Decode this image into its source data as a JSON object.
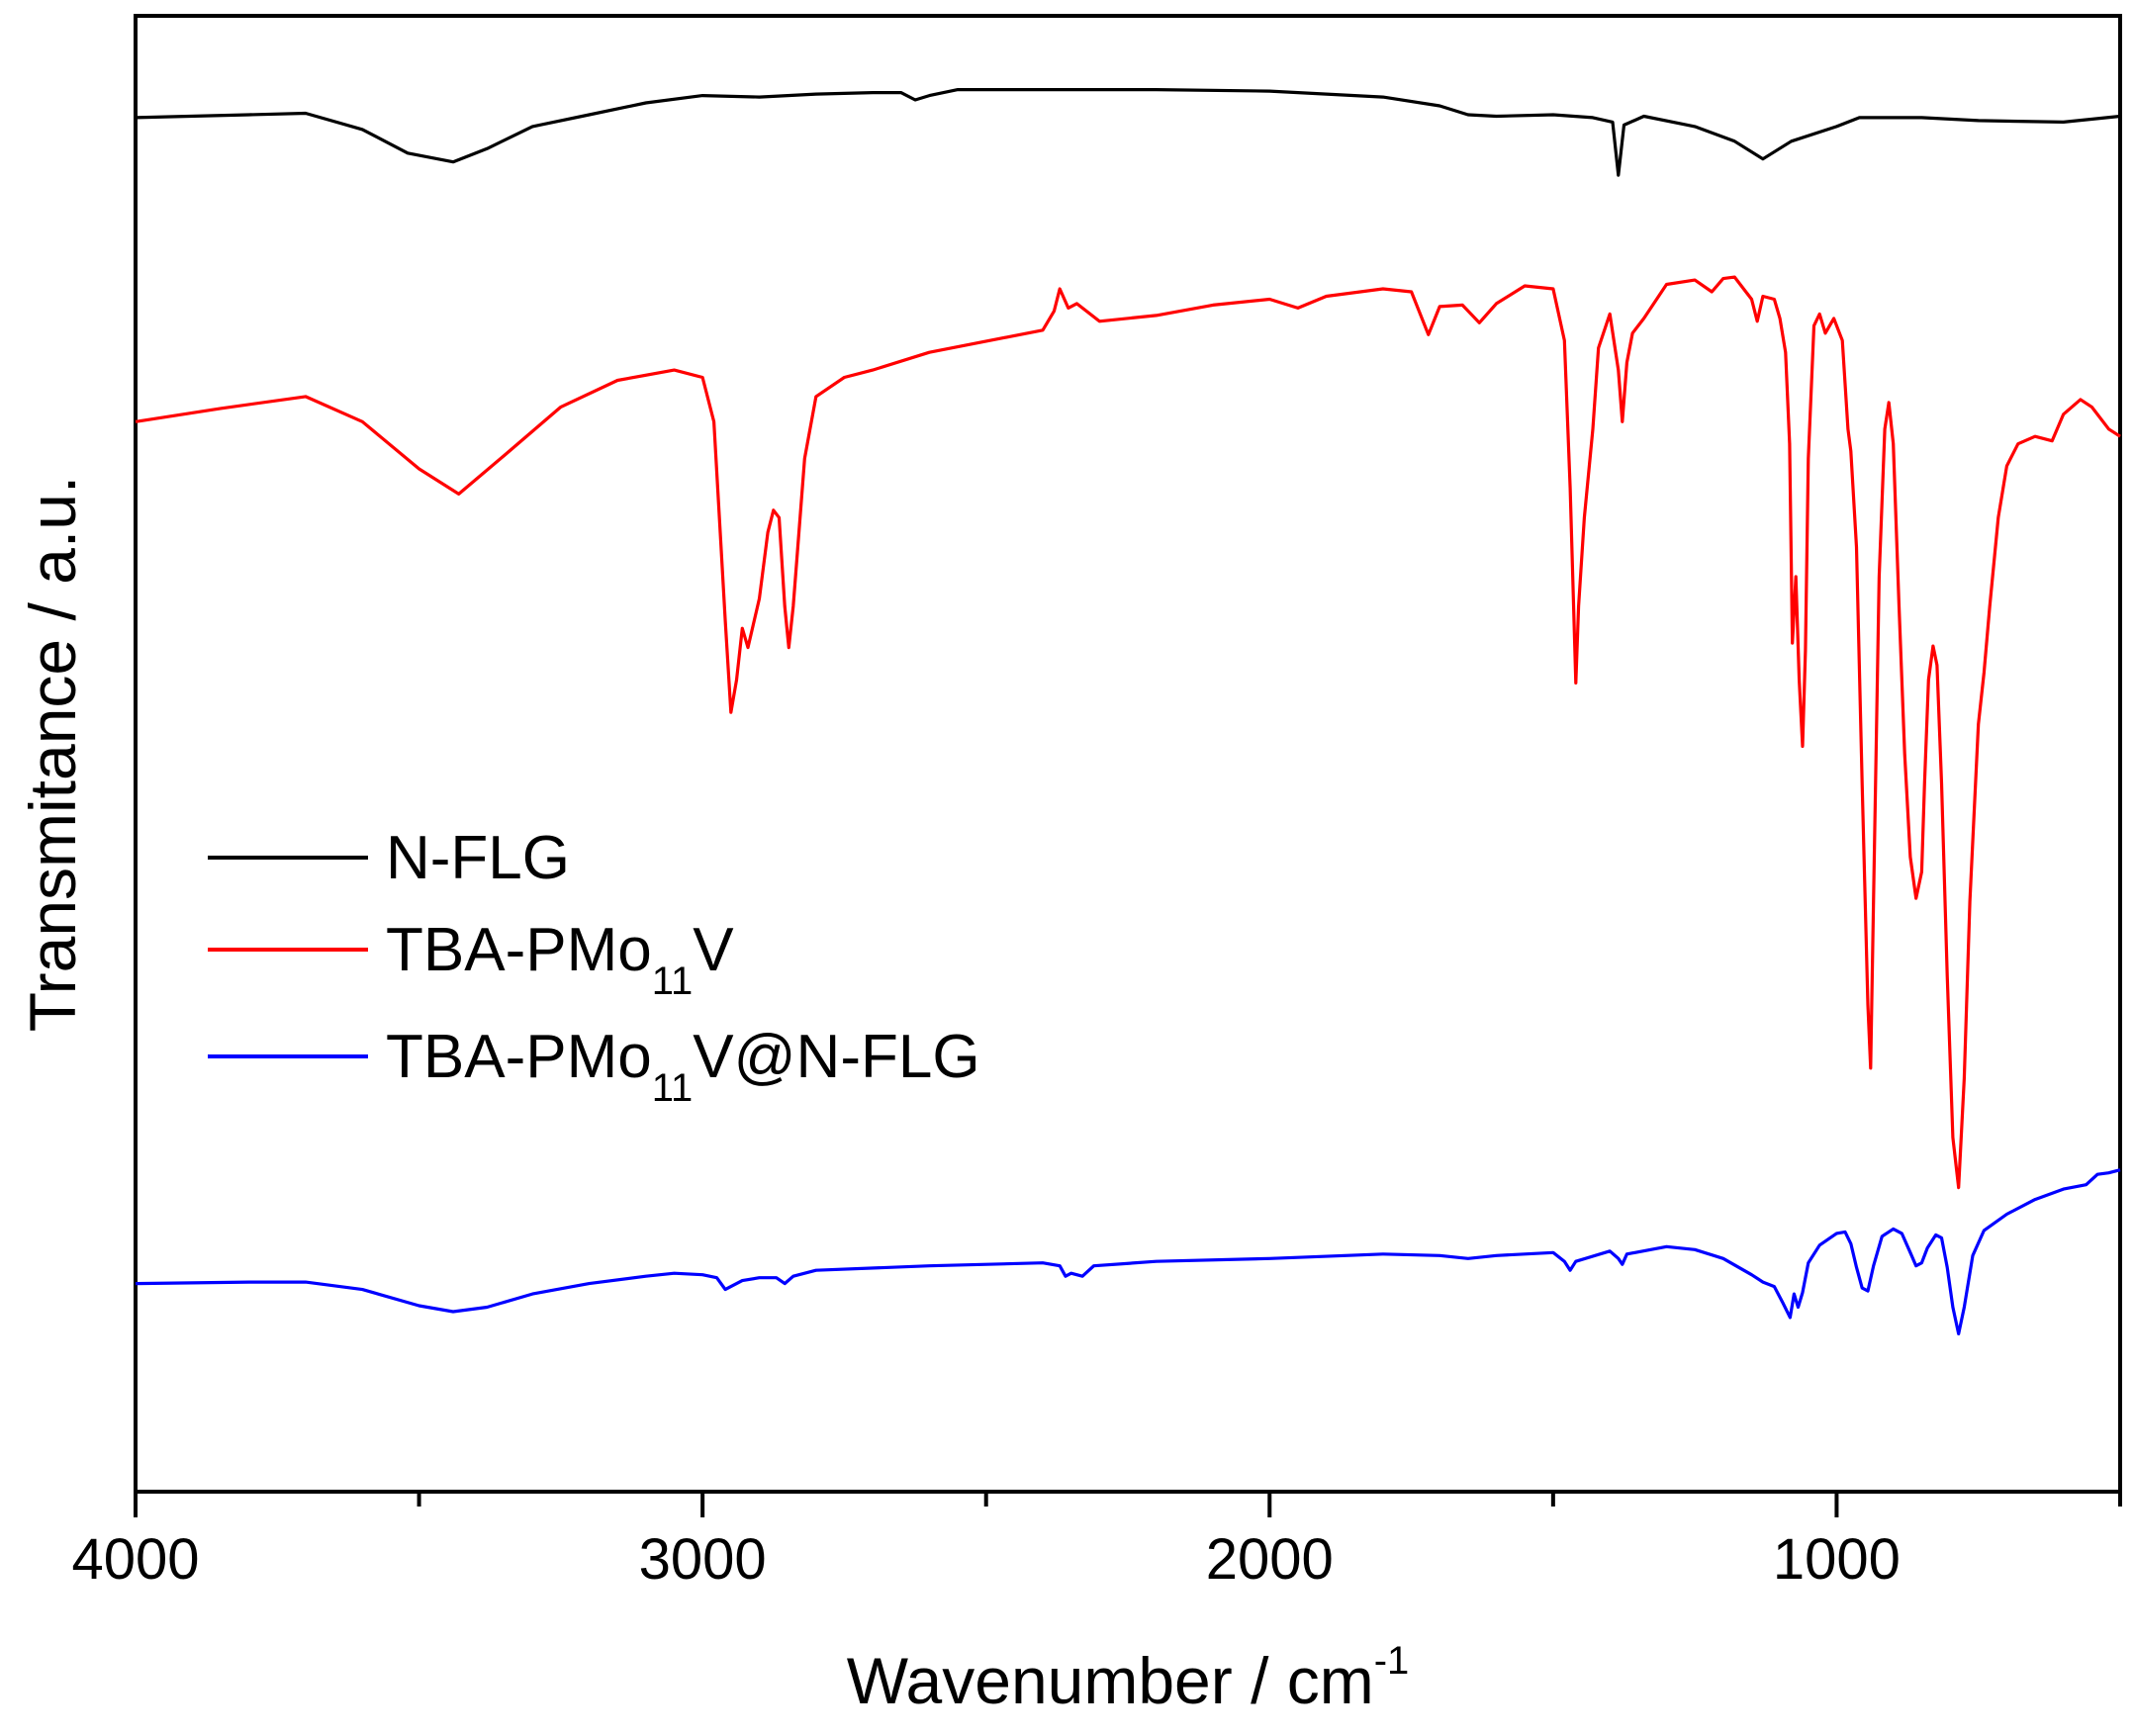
{
  "chart_data": {
    "type": "line",
    "title": "",
    "xlabel": "Wavenumber / cm",
    "xlabel_superscript": "-1",
    "ylabel": "Transmitance / a.u.",
    "xlim": [
      4000,
      500
    ],
    "ylim": [
      0,
      100
    ],
    "x_ticks": [
      4000,
      3000,
      2000,
      1000
    ],
    "x_minor_ticks": [
      3500,
      2500,
      1500,
      500
    ],
    "x_reversed": true,
    "y_tick_labels": false,
    "grid": false,
    "legend_position": "middle-left",
    "legend": [
      {
        "name": "N-FLG",
        "parts": [
          "N-FLG"
        ],
        "color": "#000000"
      },
      {
        "name": "TBA-PMo11V",
        "parts": [
          "TBA-PMo",
          "11",
          "V"
        ],
        "color": "#ff0000"
      },
      {
        "name": "TBA-PMo11V@N-FLG",
        "parts": [
          "TBA-PMo",
          "11",
          "V@N-FLG"
        ],
        "color": "#0000ff"
      }
    ],
    "series": [
      {
        "name": "N-FLG",
        "color": "#000000",
        "points": [
          [
            4000,
            93.1
          ],
          [
            3800,
            93.3
          ],
          [
            3700,
            93.4
          ],
          [
            3600,
            92.3
          ],
          [
            3520,
            90.7
          ],
          [
            3440,
            90.1
          ],
          [
            3380,
            91
          ],
          [
            3300,
            92.5
          ],
          [
            3200,
            93.3
          ],
          [
            3100,
            94.1
          ],
          [
            3000,
            94.6
          ],
          [
            2900,
            94.5
          ],
          [
            2800,
            94.7
          ],
          [
            2700,
            94.8
          ],
          [
            2650,
            94.8
          ],
          [
            2625,
            94.3
          ],
          [
            2600,
            94.6
          ],
          [
            2550,
            95.0
          ],
          [
            2400,
            95.0
          ],
          [
            2200,
            95.0
          ],
          [
            2000,
            94.9
          ],
          [
            1800,
            94.5
          ],
          [
            1700,
            93.9
          ],
          [
            1650,
            93.3
          ],
          [
            1600,
            93.2
          ],
          [
            1500,
            93.3
          ],
          [
            1430,
            93.1
          ],
          [
            1395,
            92.8
          ],
          [
            1385,
            89.2
          ],
          [
            1375,
            92.6
          ],
          [
            1340,
            93.2
          ],
          [
            1250,
            92.5
          ],
          [
            1180,
            91.5
          ],
          [
            1130,
            90.3
          ],
          [
            1080,
            91.5
          ],
          [
            1000,
            92.5
          ],
          [
            960,
            93.1
          ],
          [
            850,
            93.1
          ],
          [
            750,
            92.9
          ],
          [
            600,
            92.8
          ],
          [
            500,
            93.2
          ]
        ]
      },
      {
        "name": "TBA-PMo11V",
        "color": "#ff0000",
        "points": [
          [
            4000,
            72.5
          ],
          [
            3850,
            73.4
          ],
          [
            3700,
            74.2
          ],
          [
            3600,
            72.5
          ],
          [
            3500,
            69.3
          ],
          [
            3430,
            67.6
          ],
          [
            3350,
            70.2
          ],
          [
            3250,
            73.5
          ],
          [
            3150,
            75.3
          ],
          [
            3050,
            76.0
          ],
          [
            3000,
            75.5
          ],
          [
            2980,
            72.5
          ],
          [
            2960,
            59
          ],
          [
            2950,
            52.8
          ],
          [
            2940,
            55
          ],
          [
            2930,
            58.5
          ],
          [
            2920,
            57.2
          ],
          [
            2900,
            60.5
          ],
          [
            2885,
            65
          ],
          [
            2875,
            66.5
          ],
          [
            2865,
            66
          ],
          [
            2855,
            60
          ],
          [
            2848,
            57.2
          ],
          [
            2840,
            60
          ],
          [
            2820,
            70
          ],
          [
            2800,
            74.2
          ],
          [
            2750,
            75.5
          ],
          [
            2700,
            76.0
          ],
          [
            2600,
            77.2
          ],
          [
            2400,
            78.7
          ],
          [
            2380,
            80.0
          ],
          [
            2370,
            81.5
          ],
          [
            2355,
            80.2
          ],
          [
            2340,
            80.5
          ],
          [
            2300,
            79.3
          ],
          [
            2200,
            79.7
          ],
          [
            2100,
            80.4
          ],
          [
            2000,
            80.8
          ],
          [
            1950,
            80.2
          ],
          [
            1900,
            81.0
          ],
          [
            1800,
            81.5
          ],
          [
            1750,
            81.3
          ],
          [
            1720,
            78.4
          ],
          [
            1700,
            80.3
          ],
          [
            1660,
            80.4
          ],
          [
            1630,
            79.2
          ],
          [
            1600,
            80.5
          ],
          [
            1550,
            81.7
          ],
          [
            1500,
            81.5
          ],
          [
            1480,
            78
          ],
          [
            1470,
            68
          ],
          [
            1460,
            54.8
          ],
          [
            1455,
            60
          ],
          [
            1445,
            66
          ],
          [
            1430,
            72
          ],
          [
            1420,
            77.5
          ],
          [
            1400,
            79.8
          ],
          [
            1385,
            76
          ],
          [
            1378,
            72.5
          ],
          [
            1370,
            76.5
          ],
          [
            1360,
            78.5
          ],
          [
            1340,
            79.5
          ],
          [
            1300,
            81.8
          ],
          [
            1250,
            82.1
          ],
          [
            1220,
            81.3
          ],
          [
            1200,
            82.2
          ],
          [
            1180,
            82.3
          ],
          [
            1160,
            81.3
          ],
          [
            1150,
            80.8
          ],
          [
            1140,
            79.3
          ],
          [
            1130,
            81
          ],
          [
            1110,
            80.8
          ],
          [
            1100,
            79.5
          ],
          [
            1090,
            77.2
          ],
          [
            1083,
            71
          ],
          [
            1078,
            57.5
          ],
          [
            1072,
            62
          ],
          [
            1066,
            55
          ],
          [
            1060,
            50.5
          ],
          [
            1055,
            57
          ],
          [
            1050,
            70
          ],
          [
            1040,
            79
          ],
          [
            1030,
            79.8
          ],
          [
            1020,
            78.5
          ],
          [
            1005,
            79.5
          ],
          [
            990,
            78
          ],
          [
            980,
            72
          ],
          [
            975,
            70.5
          ],
          [
            965,
            64
          ],
          [
            955,
            48
          ],
          [
            945,
            33
          ],
          [
            940,
            28.7
          ],
          [
            935,
            40
          ],
          [
            925,
            62
          ],
          [
            915,
            72
          ],
          [
            908,
            73.8
          ],
          [
            900,
            71
          ],
          [
            890,
            60
          ],
          [
            880,
            50
          ],
          [
            870,
            43
          ],
          [
            860,
            40.2
          ],
          [
            850,
            42
          ],
          [
            845,
            48
          ],
          [
            838,
            55
          ],
          [
            830,
            57.3
          ],
          [
            823,
            56
          ],
          [
            815,
            48
          ],
          [
            805,
            35
          ],
          [
            795,
            24
          ],
          [
            785,
            20.6
          ],
          [
            775,
            28
          ],
          [
            765,
            40
          ],
          [
            750,
            52
          ],
          [
            740,
            55.5
          ],
          [
            730,
            60
          ],
          [
            715,
            66
          ],
          [
            700,
            69.5
          ],
          [
            680,
            71
          ],
          [
            650,
            71.5
          ],
          [
            620,
            71.2
          ],
          [
            600,
            73
          ],
          [
            570,
            74
          ],
          [
            550,
            73.5
          ],
          [
            520,
            72
          ],
          [
            500,
            71.5
          ]
        ]
      },
      {
        "name": "TBA-PMo11V@N-FLG",
        "color": "#0000ff",
        "points": [
          [
            4000,
            14.1
          ],
          [
            3800,
            14.2
          ],
          [
            3700,
            14.2
          ],
          [
            3600,
            13.7
          ],
          [
            3500,
            12.6
          ],
          [
            3440,
            12.2
          ],
          [
            3380,
            12.5
          ],
          [
            3300,
            13.4
          ],
          [
            3200,
            14.1
          ],
          [
            3100,
            14.6
          ],
          [
            3050,
            14.8
          ],
          [
            3000,
            14.7
          ],
          [
            2975,
            14.5
          ],
          [
            2960,
            13.7
          ],
          [
            2950,
            13.9
          ],
          [
            2930,
            14.3
          ],
          [
            2900,
            14.5
          ],
          [
            2870,
            14.5
          ],
          [
            2855,
            14.1
          ],
          [
            2840,
            14.6
          ],
          [
            2800,
            15.0
          ],
          [
            2600,
            15.3
          ],
          [
            2400,
            15.5
          ],
          [
            2370,
            15.3
          ],
          [
            2360,
            14.6
          ],
          [
            2350,
            14.8
          ],
          [
            2330,
            14.6
          ],
          [
            2310,
            15.3
          ],
          [
            2200,
            15.6
          ],
          [
            2000,
            15.8
          ],
          [
            1800,
            16.1
          ],
          [
            1700,
            16.0
          ],
          [
            1650,
            15.8
          ],
          [
            1600,
            16.0
          ],
          [
            1500,
            16.2
          ],
          [
            1480,
            15.6
          ],
          [
            1470,
            15.0
          ],
          [
            1460,
            15.6
          ],
          [
            1400,
            16.3
          ],
          [
            1385,
            15.8
          ],
          [
            1378,
            15.4
          ],
          [
            1370,
            16.1
          ],
          [
            1300,
            16.6
          ],
          [
            1250,
            16.4
          ],
          [
            1200,
            15.8
          ],
          [
            1150,
            14.7
          ],
          [
            1130,
            14.2
          ],
          [
            1110,
            13.9
          ],
          [
            1095,
            12.8
          ],
          [
            1082,
            11.8
          ],
          [
            1075,
            13.4
          ],
          [
            1068,
            12.5
          ],
          [
            1060,
            13.5
          ],
          [
            1050,
            15.5
          ],
          [
            1030,
            16.7
          ],
          [
            1000,
            17.5
          ],
          [
            985,
            17.6
          ],
          [
            975,
            16.8
          ],
          [
            965,
            15.2
          ],
          [
            955,
            13.8
          ],
          [
            945,
            13.6
          ],
          [
            935,
            15.3
          ],
          [
            920,
            17.3
          ],
          [
            900,
            17.8
          ],
          [
            885,
            17.5
          ],
          [
            870,
            16.2
          ],
          [
            860,
            15.3
          ],
          [
            850,
            15.5
          ],
          [
            840,
            16.5
          ],
          [
            825,
            17.4
          ],
          [
            815,
            17.2
          ],
          [
            805,
            15.2
          ],
          [
            795,
            12.5
          ],
          [
            785,
            10.7
          ],
          [
            775,
            12.5
          ],
          [
            760,
            16.0
          ],
          [
            740,
            17.7
          ],
          [
            700,
            18.8
          ],
          [
            650,
            19.8
          ],
          [
            600,
            20.5
          ],
          [
            560,
            20.8
          ],
          [
            540,
            21.5
          ],
          [
            520,
            21.6
          ],
          [
            500,
            21.8
          ]
        ]
      }
    ]
  }
}
